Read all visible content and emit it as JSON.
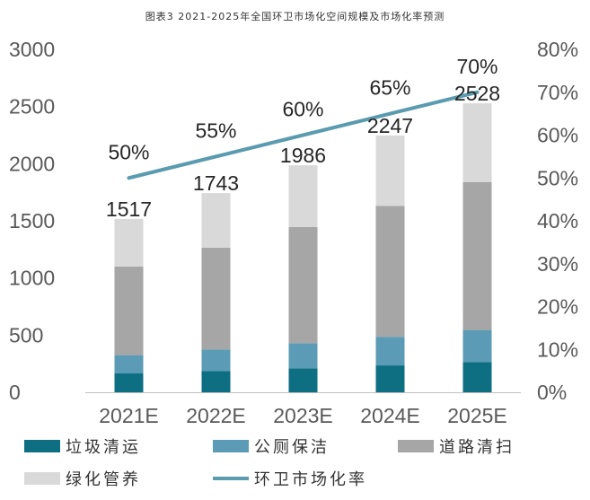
{
  "chart_data": {
    "type": "bar",
    "title": "图表3 2021-2025年全国环卫市场化空间规模及市场化率预测",
    "categories": [
      "2021E",
      "2022E",
      "2023E",
      "2024E",
      "2025E"
    ],
    "series": [
      {
        "name": "垃圾清运",
        "kind": "stacked-bar",
        "axis": "left",
        "color": "#0e6e82",
        "values": [
          165,
          185,
          210,
          235,
          265
        ]
      },
      {
        "name": "公厕保洁",
        "kind": "stacked-bar",
        "axis": "left",
        "color": "#5b9bb5",
        "values": [
          160,
          190,
          220,
          250,
          280
        ]
      },
      {
        "name": "道路清扫",
        "kind": "stacked-bar",
        "axis": "left",
        "color": "#a6a6a6",
        "values": [
          775,
          890,
          1015,
          1145,
          1295
        ]
      },
      {
        "name": "绿化管养",
        "kind": "stacked-bar",
        "axis": "left",
        "color": "#d9d9d9",
        "values": [
          417,
          478,
          541,
          617,
          688
        ]
      },
      {
        "name": "环卫市场化率",
        "kind": "line",
        "axis": "right",
        "color": "#5a9bb0",
        "values": [
          0.5,
          0.55,
          0.6,
          0.65,
          0.7
        ],
        "labels": [
          "50%",
          "55%",
          "60%",
          "65%",
          "70%"
        ]
      }
    ],
    "totals": [
      1517,
      1743,
      1986,
      2247,
      2528
    ],
    "total_labels": [
      "1517",
      "1743",
      "1986",
      "2247",
      "2528"
    ],
    "ylim": [
      0,
      3000
    ],
    "yticks": [
      0,
      500,
      1000,
      1500,
      2000,
      2500,
      3000
    ],
    "ytick_labels": [
      "0",
      "500",
      "1000",
      "1500",
      "2000",
      "2500",
      "3000"
    ],
    "y2lim": [
      0,
      0.8
    ],
    "y2ticks": [
      0,
      0.1,
      0.2,
      0.3,
      0.4,
      0.5,
      0.6,
      0.7,
      0.8
    ],
    "y2tick_labels": [
      "0%",
      "10%",
      "20%",
      "30%",
      "40%",
      "50%",
      "60%",
      "70%",
      "80%"
    ],
    "legend_position": "bottom",
    "grid": false
  }
}
